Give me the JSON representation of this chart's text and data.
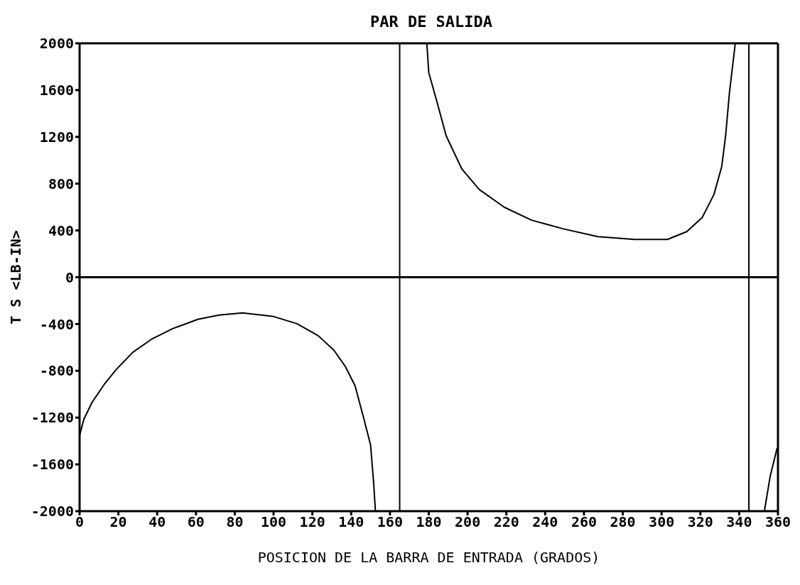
{
  "chart_data": {
    "type": "line",
    "title": "PAR DE SALIDA",
    "xlabel": "POSICION DE LA BARRA DE ENTRADA (GRADOS)",
    "ylabel": "T S <LB-IN>",
    "xlim": [
      0,
      360
    ],
    "xticks": [
      0,
      20,
      40,
      60,
      80,
      100,
      120,
      140,
      160,
      180,
      200,
      220,
      240,
      260,
      280,
      300,
      320,
      340,
      360
    ],
    "ylim": [
      -2000,
      2000
    ],
    "yticks": [
      -2000,
      -1600,
      -1200,
      -800,
      -400,
      0,
      400,
      800,
      1200,
      1600,
      2000
    ],
    "marker": "none",
    "line_style": "solid",
    "series": [
      {
        "color": "#000000",
        "x": [
          0,
          2.2,
          6.5,
          13,
          19,
          27.5,
          37,
          48,
          61,
          72,
          84,
          100,
          112,
          123,
          131,
          137,
          142,
          146.6,
          150,
          151.6,
          152.5
        ],
        "values": [
          -1354,
          -1214,
          -1068,
          -909,
          -787,
          -641,
          -531,
          -439,
          -360,
          -323,
          -305,
          -336,
          -397,
          -500,
          -622,
          -763,
          -927,
          -1214,
          -1434,
          -1763,
          -2000
        ]
      },
      {
        "color": "#000000",
        "x": [
          179,
          180,
          184,
          189,
          197,
          206,
          219,
          233,
          249,
          267,
          286,
          303,
          313,
          321,
          327,
          331,
          333,
          335,
          338
        ],
        "values": [
          2000,
          1750,
          1513,
          1208,
          927,
          750,
          598,
          488,
          415,
          348,
          323,
          323,
          390,
          512,
          708,
          946,
          1208,
          1580,
          2000
        ]
      },
      {
        "color": "#000000",
        "x": [
          353,
          356,
          359.6
        ],
        "values": [
          -2000,
          -1700,
          -1458
        ]
      }
    ],
    "ref_lines": [
      {
        "axis": "x",
        "value": 165,
        "color": "#000000"
      },
      {
        "axis": "x",
        "value": 345,
        "color": "#000000"
      },
      {
        "axis": "y",
        "value": 0,
        "color": "#000000"
      }
    ]
  }
}
